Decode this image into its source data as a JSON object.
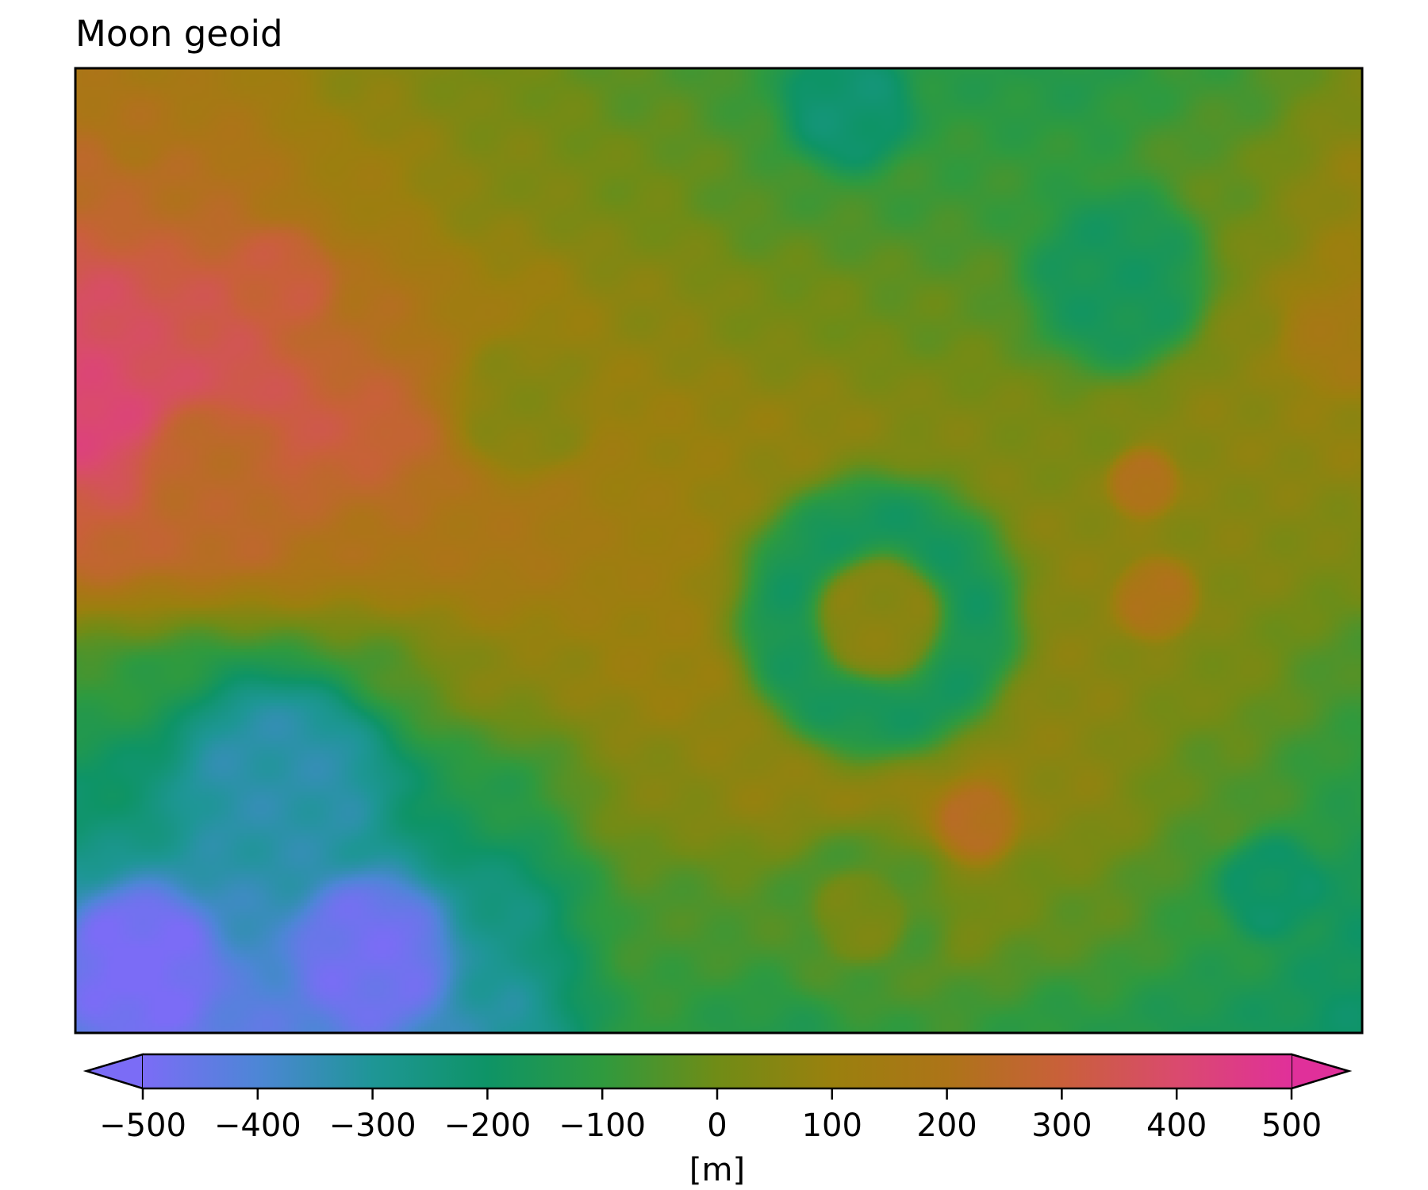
{
  "chart_data": {
    "type": "heatmap",
    "title": "Moon geoid",
    "xlabel": "",
    "ylabel": "",
    "colorbar": {
      "label": "[m]",
      "range": [
        -500,
        500
      ],
      "ticks": [
        -500,
        -400,
        -300,
        -200,
        -100,
        0,
        100,
        200,
        300,
        400,
        500
      ],
      "tick_labels": [
        "−500",
        "−400",
        "−300",
        "−200",
        "−100",
        "0",
        "100",
        "200",
        "300",
        "400",
        "500"
      ],
      "extend": "both",
      "orientation": "horizontal",
      "colormap_stops": [
        {
          "value": -500,
          "color": "#7b6cf6"
        },
        {
          "value": -400,
          "color": "#4d86d6"
        },
        {
          "value": -300,
          "color": "#1e9696"
        },
        {
          "value": -200,
          "color": "#0e9466"
        },
        {
          "value": -100,
          "color": "#2f9a3e"
        },
        {
          "value": 0,
          "color": "#708c16"
        },
        {
          "value": 100,
          "color": "#9a800e"
        },
        {
          "value": 200,
          "color": "#ad7418"
        },
        {
          "value": 300,
          "color": "#c9603a"
        },
        {
          "value": 400,
          "color": "#da4a6e"
        },
        {
          "value": 500,
          "color": "#e0309a"
        }
      ]
    },
    "grid": false,
    "ticks_on_map": false,
    "features": [
      {
        "kind": "background-gradient",
        "rows": [
          [
            180,
            150,
            60,
            10,
            -40,
            -100,
            -120,
            -130,
            -80,
            20
          ],
          [
            250,
            220,
            120,
            40,
            0,
            -60,
            -80,
            -90,
            -20,
            80
          ],
          [
            380,
            330,
            220,
            120,
            60,
            10,
            -20,
            -40,
            40,
            120
          ],
          [
            420,
            380,
            300,
            190,
            100,
            80,
            40,
            20,
            60,
            80
          ],
          [
            280,
            250,
            200,
            180,
            120,
            60,
            50,
            60,
            50,
            30
          ],
          [
            -80,
            -120,
            -60,
            60,
            100,
            100,
            80,
            60,
            20,
            -60
          ],
          [
            -200,
            -240,
            -220,
            -120,
            40,
            80,
            100,
            60,
            -40,
            -120
          ],
          [
            -320,
            -360,
            -340,
            -260,
            -60,
            -40,
            40,
            -20,
            -100,
            -180
          ],
          [
            -420,
            -440,
            -400,
            -320,
            -100,
            -140,
            -80,
            -120,
            -160,
            -200
          ]
        ]
      },
      {
        "kind": "basin",
        "x": 0.11,
        "y": 0.42,
        "r": 0.055,
        "value": 250
      },
      {
        "kind": "basin",
        "x": 0.35,
        "y": 0.35,
        "r": 0.055,
        "value": 50
      },
      {
        "kind": "basin",
        "x": 0.16,
        "y": 0.22,
        "r": 0.04,
        "value": 300
      },
      {
        "kind": "basin",
        "x": 0.05,
        "y": 0.06,
        "r": 0.03,
        "value": 200
      },
      {
        "kind": "ring",
        "x": 0.625,
        "y": 0.57,
        "r_inner": 0.045,
        "r_outer": 0.11,
        "value": -180
      },
      {
        "kind": "basin",
        "x": 0.625,
        "y": 0.57,
        "r": 0.04,
        "value": 60
      },
      {
        "kind": "basin",
        "x": 0.16,
        "y": 0.74,
        "r": 0.08,
        "value": -330
      },
      {
        "kind": "basin",
        "x": 0.61,
        "y": 0.88,
        "r": 0.07,
        "value": -60
      },
      {
        "kind": "basin",
        "x": 0.61,
        "y": 0.88,
        "r": 0.035,
        "value": 20
      },
      {
        "kind": "basin",
        "x": 0.6,
        "y": 0.04,
        "r": 0.05,
        "value": -220
      },
      {
        "kind": "basin",
        "x": 0.81,
        "y": 0.22,
        "r": 0.07,
        "value": -170
      },
      {
        "kind": "basin",
        "x": 0.93,
        "y": 0.85,
        "r": 0.04,
        "value": -200
      },
      {
        "kind": "basin",
        "x": 0.83,
        "y": 0.43,
        "r": 0.025,
        "value": 220
      },
      {
        "kind": "basin",
        "x": 0.84,
        "y": 0.55,
        "r": 0.03,
        "value": 200
      },
      {
        "kind": "basin",
        "x": 0.7,
        "y": 0.78,
        "r": 0.03,
        "value": 230
      },
      {
        "kind": "basin",
        "x": 0.98,
        "y": 0.28,
        "r": 0.04,
        "value": 150
      },
      {
        "kind": "basin",
        "x": 0.05,
        "y": 0.93,
        "r": 0.06,
        "value": -500
      },
      {
        "kind": "basin",
        "x": 0.23,
        "y": 0.92,
        "r": 0.06,
        "value": -480
      }
    ]
  }
}
